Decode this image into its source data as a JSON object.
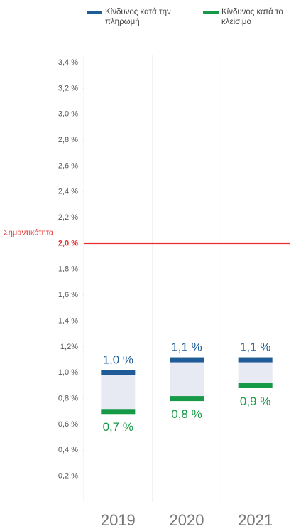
{
  "chart_data": {
    "type": "range",
    "categories": [
      "2019",
      "2020",
      "2021"
    ],
    "series": [
      {
        "name": "Κίνδυνος κατά την πληρωμή",
        "color": "#1f5b96",
        "values": [
          1.0,
          1.1,
          1.1
        ],
        "value_labels": [
          "1,0 %",
          "1,1 %",
          "1,1 %"
        ]
      },
      {
        "name": "Κίνδυνος κατά το κλείσιμο",
        "color": "#169a45",
        "values": [
          0.7,
          0.8,
          0.9
        ],
        "value_labels": [
          "0,7 %",
          "0,8 %",
          "0,9 %"
        ]
      }
    ],
    "range_color": "#e7eaf3",
    "threshold": {
      "value": 2.0,
      "label": "Σημαντικότητα",
      "color": "#e8302f"
    },
    "ylim": [
      0,
      3.4
    ],
    "yticks": [
      {
        "value": 0.2,
        "label": "0,2 %"
      },
      {
        "value": 0.4,
        "label": "0,4 %"
      },
      {
        "value": 0.6,
        "label": "0,6 %"
      },
      {
        "value": 0.8,
        "label": "0,8 %"
      },
      {
        "value": 1.0,
        "label": "1,0 %"
      },
      {
        "value": 1.2,
        "label": "1,2%"
      },
      {
        "value": 1.4,
        "label": "1,4 %"
      },
      {
        "value": 1.6,
        "label": "1,6 %"
      },
      {
        "value": 1.8,
        "label": "1,8 %"
      },
      {
        "value": 2.0,
        "label": "2,0 %"
      },
      {
        "value": 2.2,
        "label": "2,2 %"
      },
      {
        "value": 2.4,
        "label": "2,4 %"
      },
      {
        "value": 2.6,
        "label": "2,6 %"
      },
      {
        "value": 2.8,
        "label": "2,8 %"
      },
      {
        "value": 3.0,
        "label": "3,0 %"
      },
      {
        "value": 3.2,
        "label": "3,2 %"
      },
      {
        "value": 3.4,
        "label": "3,4 %"
      }
    ]
  }
}
